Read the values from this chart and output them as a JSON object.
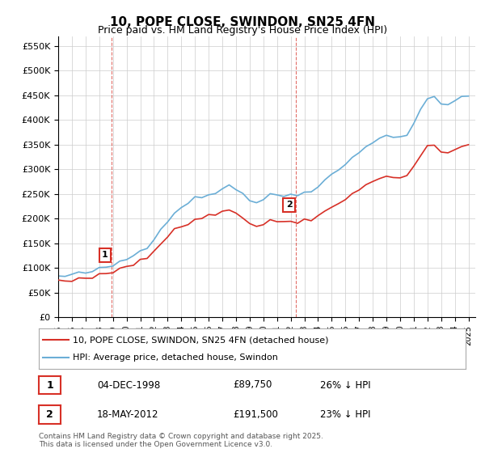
{
  "title": "10, POPE CLOSE, SWINDON, SN25 4FN",
  "subtitle": "Price paid vs. HM Land Registry's House Price Index (HPI)",
  "ylabel_ticks": [
    "£0",
    "£50K",
    "£100K",
    "£150K",
    "£200K",
    "£250K",
    "£300K",
    "£350K",
    "£400K",
    "£450K",
    "£500K",
    "£550K"
  ],
  "ytick_values": [
    0,
    50000,
    100000,
    150000,
    200000,
    250000,
    300000,
    350000,
    400000,
    450000,
    500000,
    550000
  ],
  "ylim": [
    0,
    570000
  ],
  "xlim_start": 1995.0,
  "xlim_end": 2025.5,
  "hpi_color": "#6baed6",
  "price_color": "#d73027",
  "vline_color": "#d73027",
  "point1_year": 1998.92,
  "point1_price": 89750,
  "point1_label": "1",
  "point2_year": 2012.38,
  "point2_price": 191500,
  "point2_label": "2",
  "legend_price_label": "10, POPE CLOSE, SWINDON, SN25 4FN (detached house)",
  "legend_hpi_label": "HPI: Average price, detached house, Swindon",
  "table_rows": [
    {
      "num": "1",
      "date": "04-DEC-1998",
      "price": "£89,750",
      "note": "26% ↓ HPI"
    },
    {
      "num": "2",
      "date": "18-MAY-2012",
      "price": "£191,500",
      "note": "23% ↓ HPI"
    }
  ],
  "footnote": "Contains HM Land Registry data © Crown copyright and database right 2025.\nThis data is licensed under the Open Government Licence v3.0.",
  "background_color": "#ffffff",
  "plot_bg_color": "#ffffff",
  "grid_color": "#cccccc"
}
